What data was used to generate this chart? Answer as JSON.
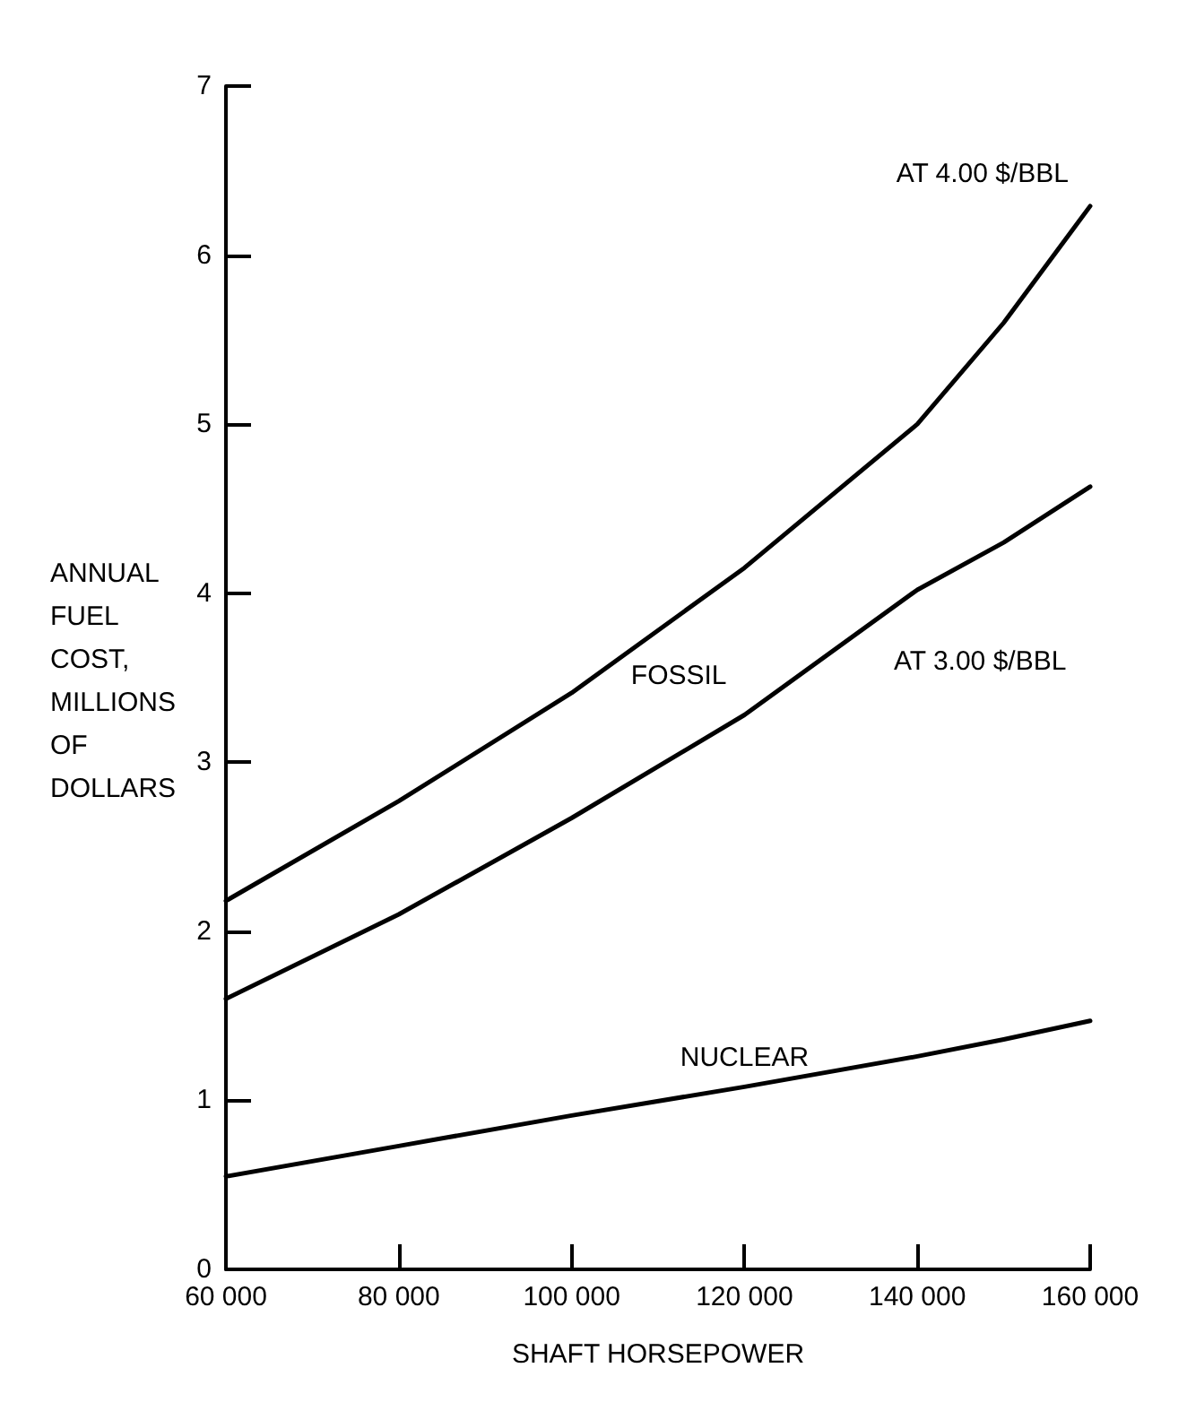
{
  "chart_data": {
    "type": "line",
    "xlabel": "SHAFT HORSEPOWER",
    "ylabel": "ANNUAL\nFUEL\nCOST,\nMILLIONS\nOF\nDOLLARS",
    "x": [
      60000,
      80000,
      100000,
      120000,
      140000,
      150000,
      160000
    ],
    "series": [
      {
        "name": "AT 4.00 $/BBL",
        "color": "#000000",
        "values": [
          2.18,
          2.77,
          3.41,
          4.15,
          5.0,
          5.6,
          6.29
        ]
      },
      {
        "name": "AT 3.00 $/BBL",
        "color": "#000000",
        "values": [
          1.6,
          2.1,
          2.67,
          3.28,
          4.02,
          4.3,
          4.63
        ]
      },
      {
        "name": "NUCLEAR",
        "color": "#000000",
        "values": [
          0.55,
          0.73,
          0.91,
          1.08,
          1.26,
          1.36,
          1.47
        ]
      }
    ],
    "xlim": [
      60000,
      160000
    ],
    "xticks": [
      {
        "value": 60000,
        "label": "60 000"
      },
      {
        "value": 80000,
        "label": "80 000"
      },
      {
        "value": 100000,
        "label": "100 000"
      },
      {
        "value": 120000,
        "label": "120 000"
      },
      {
        "value": 140000,
        "label": "140 000"
      },
      {
        "value": 160000,
        "label": "160 000"
      }
    ],
    "ylim": [
      0,
      7
    ],
    "yticks": [
      0,
      1,
      2,
      3,
      4,
      5,
      6,
      7
    ],
    "grid": false,
    "legend": false,
    "marker": "none",
    "line_style": "solid",
    "annotations": [
      "FOSSIL"
    ]
  }
}
